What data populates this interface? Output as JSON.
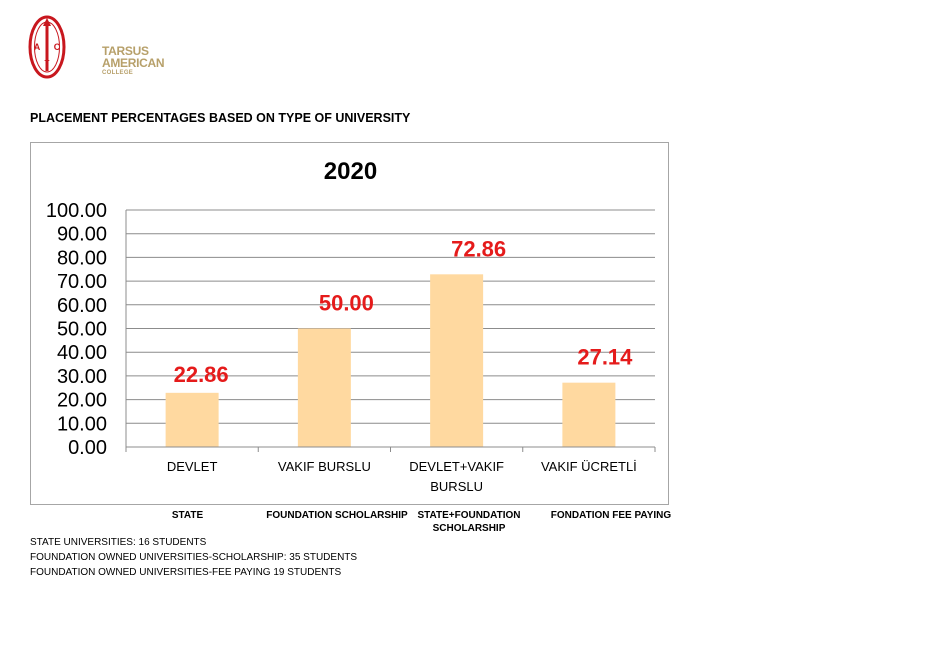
{
  "logo": {
    "seal_letters": [
      "A",
      "C",
      "T"
    ],
    "line1": "TARSUS",
    "line2": "AMERICAN",
    "line3": "COLLEGE",
    "colors": {
      "red": "#c8171e",
      "gold": "#b7a06a"
    }
  },
  "page_heading": "PLACEMENT PERCENTAGES BASED ON TYPE OF UNIVERSITY",
  "chart_data": {
    "type": "bar",
    "title": "2020",
    "categories": [
      "DEVLET",
      "VAKIF BURSLU",
      "DEVLET+VAKIF BURSLU",
      "VAKIF ÜCRETLİ"
    ],
    "values": [
      22.86,
      50.0,
      72.86,
      27.14
    ],
    "value_labels": [
      "22.86",
      "50.00",
      "72.86",
      "27.14"
    ],
    "ylim": [
      0,
      100
    ],
    "ytick_step": 10,
    "ytick_labels": [
      "0.00",
      "10.00",
      "20.00",
      "30.00",
      "40.00",
      "50.00",
      "60.00",
      "70.00",
      "80.00",
      "90.00",
      "100.00"
    ],
    "grid": true,
    "legend": "none",
    "bar_color": "#ffd9a0",
    "label_color": "#e51b1b"
  },
  "english_labels": [
    "STATE",
    "FOUNDATION SCHOLARSHIP",
    "STATE+FOUNDATION SCHOLARSHIP",
    "FONDATION FEE PAYING"
  ],
  "notes": [
    "STATE UNIVERSITIES: 16 STUDENTS",
    "FOUNDATION OWNED UNIVERSITIES-SCHOLARSHIP: 35 STUDENTS",
    "FOUNDATION OWNED UNIVERSITIES-FEE PAYING 19 STUDENTS"
  ]
}
